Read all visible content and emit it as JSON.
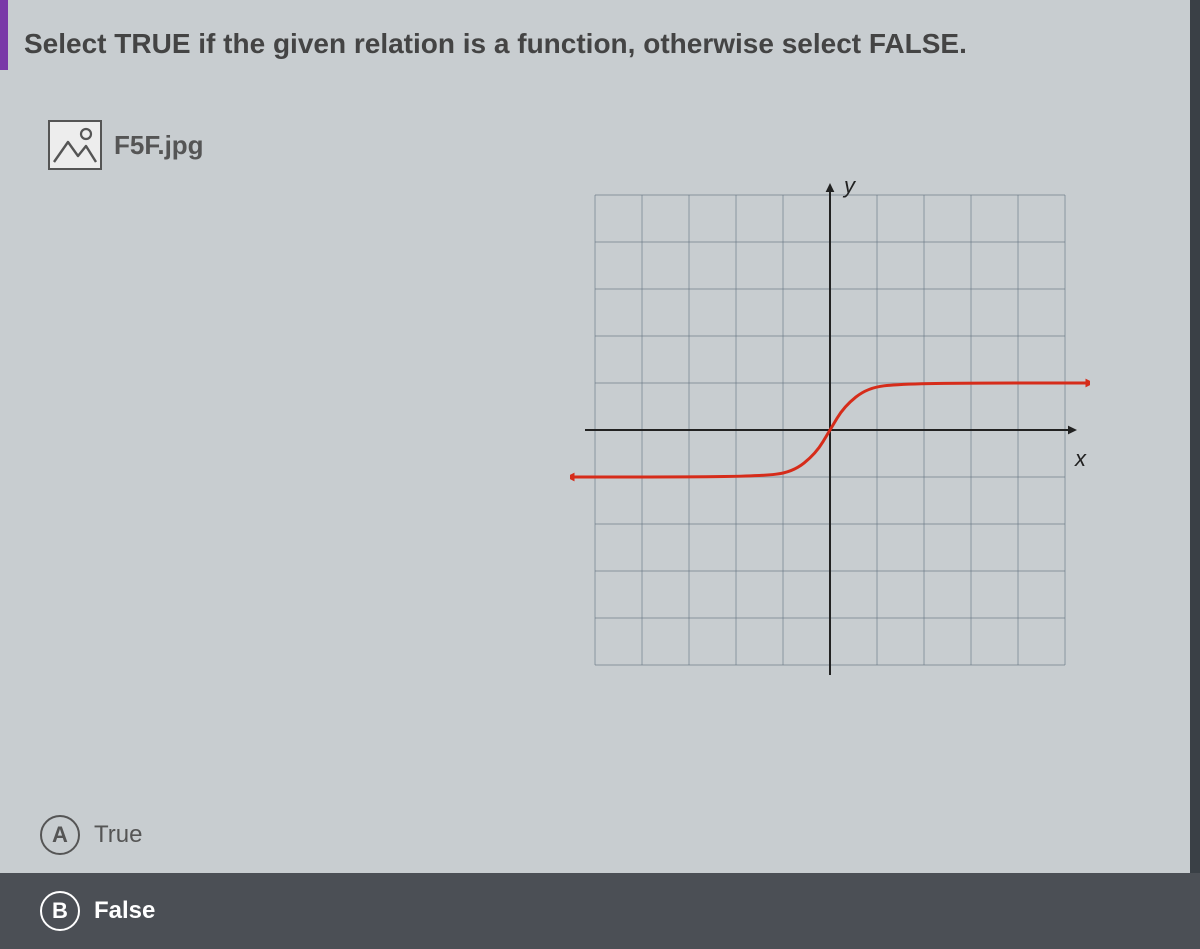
{
  "question": {
    "prompt": "Select TRUE if the given relation is a function, otherwise select FALSE."
  },
  "attachment": {
    "filename": "F5F.jpg"
  },
  "graph": {
    "type": "line",
    "x_axis_label": "x",
    "y_axis_label": "y",
    "grid_color": "#6b7a86",
    "axis_color": "#222",
    "curve_color": "#d62c1a",
    "background_color": "#c8cdd0",
    "xlim": [
      -5,
      5
    ],
    "ylim": [
      -5,
      5
    ],
    "grid_step": 1,
    "curve_points": [
      [
        -5.5,
        -1.0
      ],
      [
        -3.0,
        -1.0
      ],
      [
        -1.5,
        -0.98
      ],
      [
        -0.8,
        -0.9
      ],
      [
        -0.3,
        -0.5
      ],
      [
        0.0,
        0.0
      ],
      [
        0.3,
        0.5
      ],
      [
        0.8,
        0.9
      ],
      [
        1.5,
        0.98
      ],
      [
        3.0,
        1.0
      ],
      [
        5.5,
        1.0
      ]
    ],
    "curve_width": 3
  },
  "options": {
    "a": {
      "letter": "A",
      "label": "True",
      "selected": false
    },
    "b": {
      "letter": "B",
      "label": "False",
      "selected": true
    }
  },
  "colors": {
    "page_bg": "#c8cdd0",
    "accent_purple": "#7a3aa8",
    "selected_bg": "#4b4f55",
    "text_dark": "#444"
  }
}
